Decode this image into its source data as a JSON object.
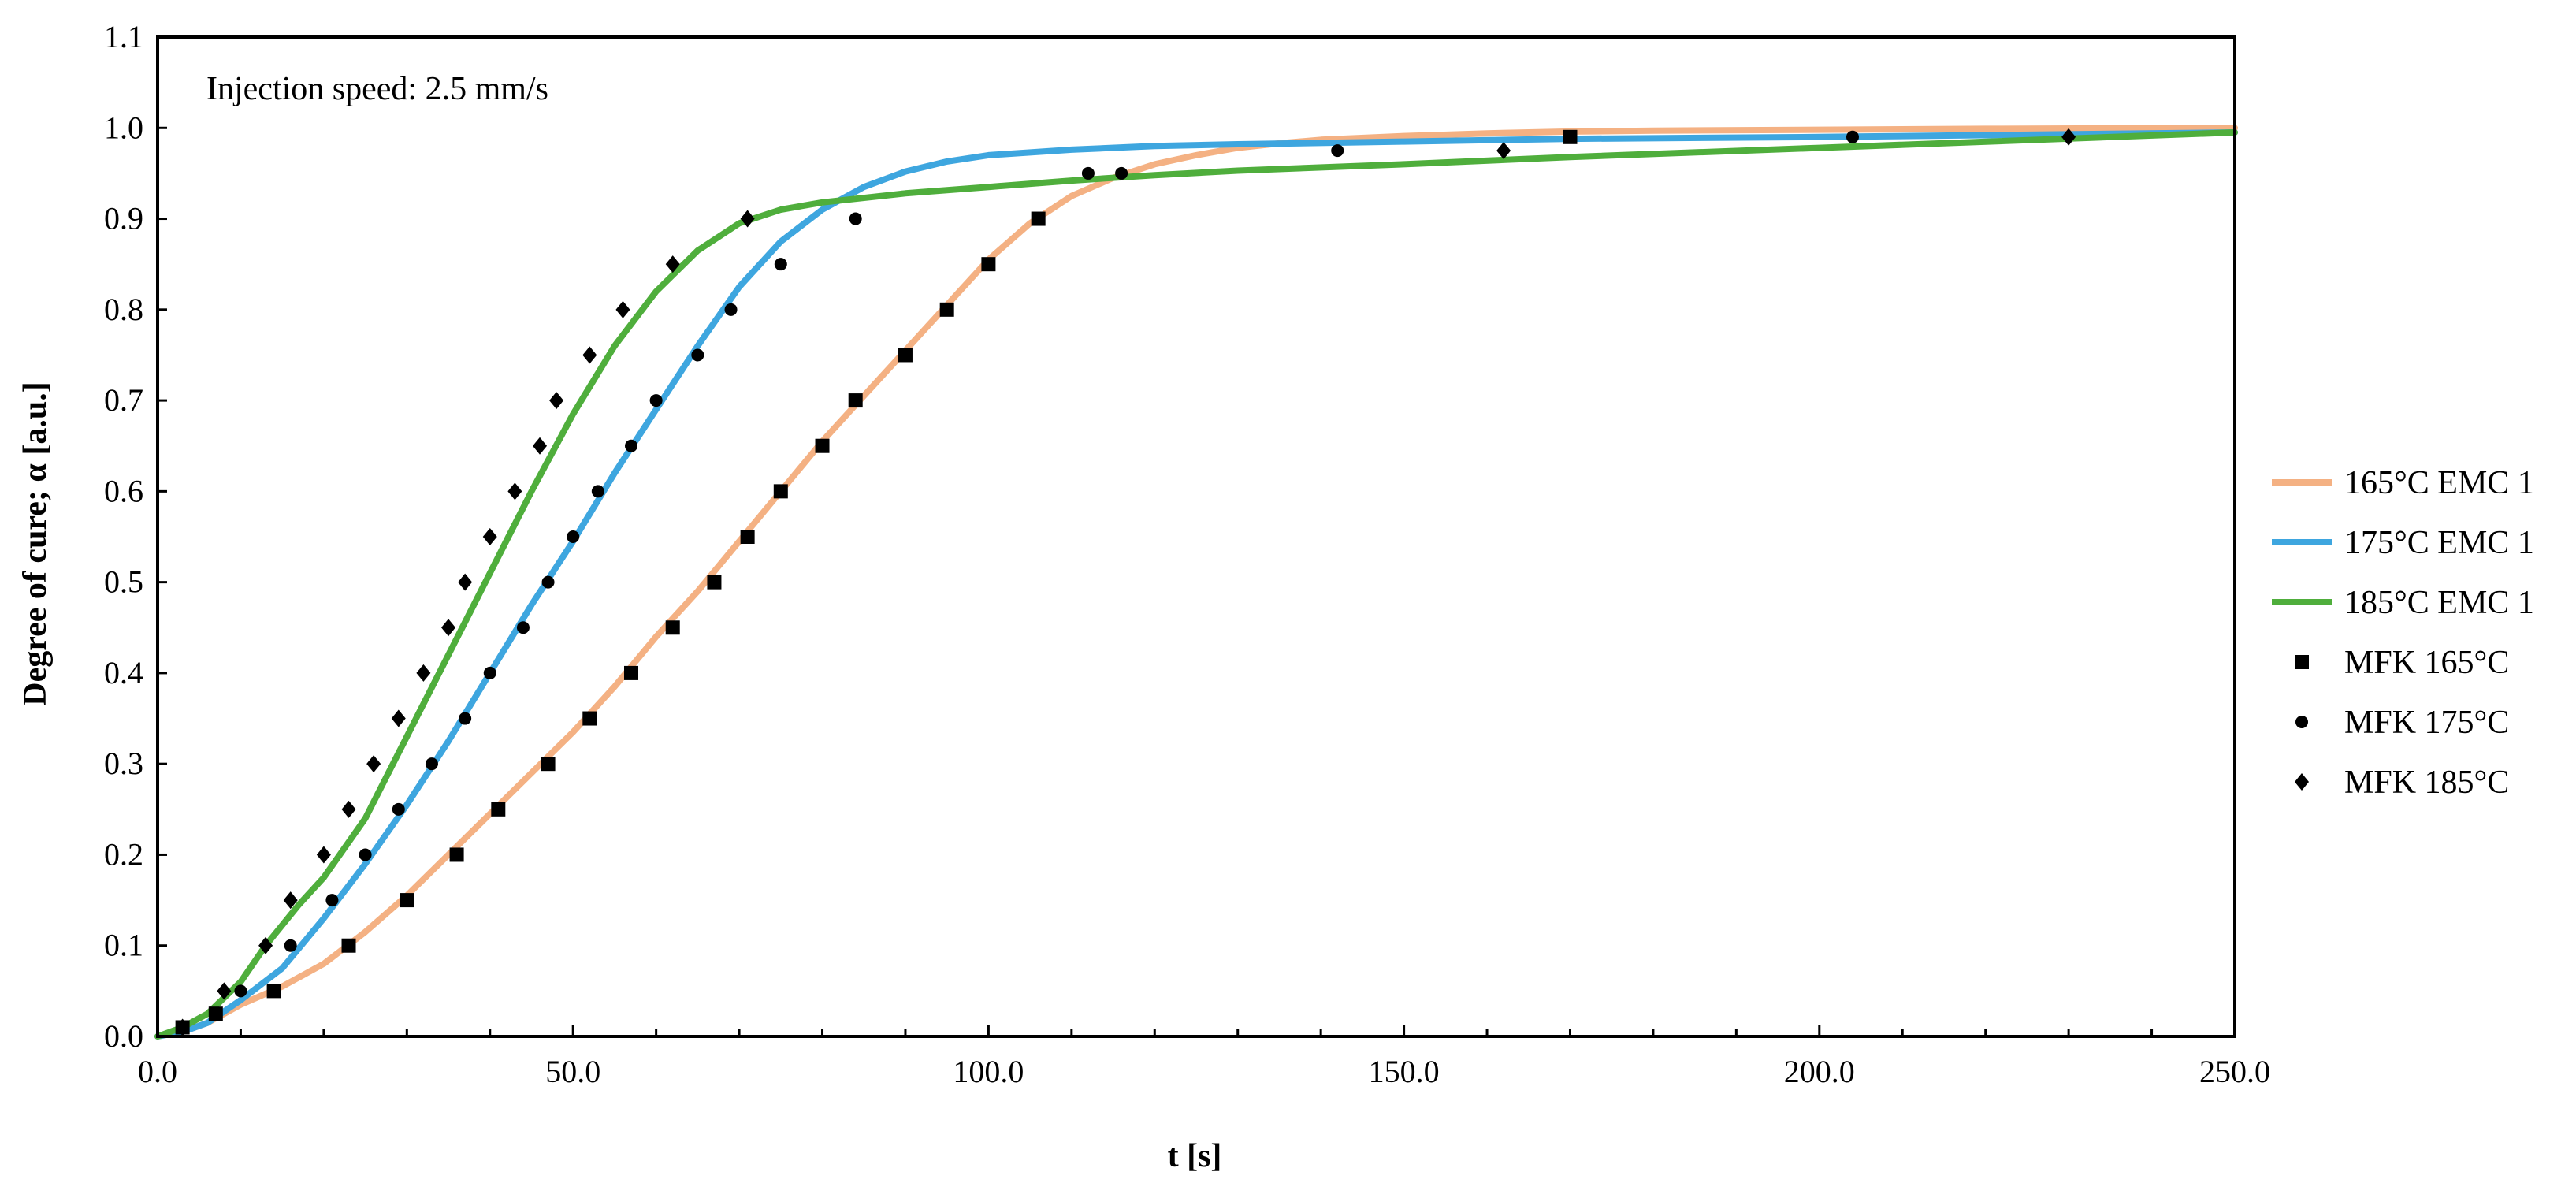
{
  "chart_data": {
    "type": "line",
    "title": "",
    "annotation": "Injection speed: 2.5 mm/s",
    "xlabel": "t [s]",
    "ylabel": "Degree of cure; α [a.u.]",
    "xlim": [
      0,
      250
    ],
    "ylim": [
      0,
      1.1
    ],
    "x_ticks": [
      "0.0",
      "50.0",
      "100.0",
      "150.0",
      "200.0",
      "250.0"
    ],
    "y_ticks": [
      "0.0",
      "0.1",
      "0.2",
      "0.3",
      "0.4",
      "0.5",
      "0.6",
      "0.7",
      "0.8",
      "0.9",
      "1.0",
      "1.1"
    ],
    "grid": false,
    "legend_position": "right",
    "series": [
      {
        "name": "165°C EMC 1",
        "kind": "line",
        "color": "#f4b183",
        "x": [
          0,
          3,
          6,
          10,
          15,
          20,
          25,
          30,
          35,
          40,
          45,
          50,
          55,
          60,
          65,
          70,
          75,
          80,
          85,
          90,
          95,
          100,
          105,
          110,
          115,
          120,
          125,
          130,
          135,
          140,
          150,
          160,
          170,
          180,
          200,
          220,
          250
        ],
        "y": [
          0,
          0.005,
          0.015,
          0.035,
          0.055,
          0.08,
          0.115,
          0.155,
          0.2,
          0.245,
          0.29,
          0.335,
          0.385,
          0.44,
          0.49,
          0.545,
          0.6,
          0.655,
          0.705,
          0.755,
          0.805,
          0.855,
          0.895,
          0.925,
          0.945,
          0.96,
          0.97,
          0.978,
          0.983,
          0.987,
          0.991,
          0.994,
          0.996,
          0.997,
          0.998,
          0.999,
          1.0
        ]
      },
      {
        "name": "175°C EMC 1",
        "kind": "line",
        "color": "#3ea6df",
        "x": [
          0,
          3,
          6,
          10,
          15,
          20,
          25,
          30,
          35,
          40,
          45,
          50,
          55,
          60,
          65,
          70,
          75,
          80,
          85,
          90,
          95,
          100,
          110,
          120,
          130,
          150,
          170,
          200,
          250
        ],
        "y": [
          0,
          0.005,
          0.015,
          0.04,
          0.075,
          0.13,
          0.19,
          0.255,
          0.325,
          0.4,
          0.475,
          0.545,
          0.62,
          0.69,
          0.76,
          0.825,
          0.875,
          0.91,
          0.935,
          0.952,
          0.963,
          0.97,
          0.976,
          0.98,
          0.982,
          0.985,
          0.988,
          0.99,
          0.995
        ]
      },
      {
        "name": "185°C EMC 1",
        "kind": "line",
        "color": "#4fae3c",
        "x": [
          0,
          3,
          6,
          10,
          13,
          17,
          20,
          25,
          30,
          35,
          40,
          45,
          50,
          55,
          60,
          65,
          70,
          75,
          80,
          90,
          100,
          110,
          120,
          130,
          150,
          170,
          200,
          250
        ],
        "y": [
          0,
          0.01,
          0.025,
          0.06,
          0.1,
          0.145,
          0.175,
          0.24,
          0.33,
          0.42,
          0.51,
          0.6,
          0.685,
          0.76,
          0.82,
          0.865,
          0.895,
          0.91,
          0.918,
          0.928,
          0.935,
          0.942,
          0.948,
          0.953,
          0.96,
          0.968,
          0.978,
          0.995
        ]
      },
      {
        "name": "MFK 165°C",
        "kind": "scatter",
        "marker": "square",
        "color": "#000000",
        "x": [
          3,
          7,
          14,
          23,
          30,
          36,
          41,
          47,
          52,
          57,
          62,
          67,
          71,
          75,
          80,
          84,
          90,
          95,
          100,
          106,
          170
        ],
        "y": [
          0.01,
          0.025,
          0.05,
          0.1,
          0.15,
          0.2,
          0.25,
          0.3,
          0.35,
          0.4,
          0.45,
          0.5,
          0.55,
          0.6,
          0.65,
          0.7,
          0.75,
          0.8,
          0.85,
          0.9,
          0.99
        ]
      },
      {
        "name": "MFK 175°C",
        "kind": "scatter",
        "marker": "circle",
        "color": "#000000",
        "x": [
          3,
          7,
          10,
          16,
          21,
          25,
          29,
          33,
          37,
          40,
          44,
          47,
          50,
          53,
          57,
          60,
          65,
          69,
          75,
          84,
          112,
          116,
          142,
          204
        ],
        "y": [
          0.01,
          0.025,
          0.05,
          0.1,
          0.15,
          0.2,
          0.25,
          0.3,
          0.35,
          0.4,
          0.45,
          0.5,
          0.55,
          0.6,
          0.65,
          0.7,
          0.75,
          0.8,
          0.85,
          0.9,
          0.95,
          0.95,
          0.975,
          0.99
        ]
      },
      {
        "name": "MFK 185°C",
        "kind": "scatter",
        "marker": "diamond",
        "color": "#000000",
        "x": [
          3,
          8,
          13,
          16,
          20,
          23,
          26,
          29,
          32,
          35,
          37,
          40,
          43,
          46,
          48,
          52,
          56,
          62,
          71,
          162,
          230
        ],
        "y": [
          0.01,
          0.05,
          0.1,
          0.15,
          0.2,
          0.25,
          0.3,
          0.35,
          0.4,
          0.45,
          0.5,
          0.55,
          0.6,
          0.65,
          0.7,
          0.75,
          0.8,
          0.85,
          0.9,
          0.975,
          0.99
        ]
      }
    ]
  }
}
